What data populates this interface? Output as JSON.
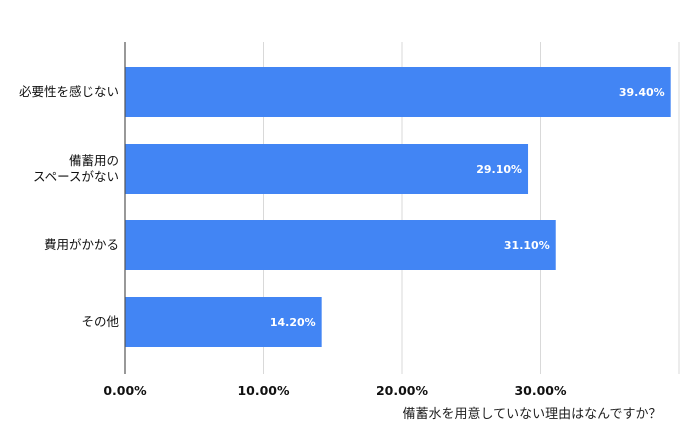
{
  "chart_data": {
    "type": "bar",
    "orientation": "horizontal",
    "categories": [
      [
        "必要性を感じない"
      ],
      [
        "備蓄用の",
        "スペースがない"
      ],
      [
        "費用がかかる"
      ],
      [
        "その他"
      ]
    ],
    "values": [
      39.4,
      29.1,
      31.1,
      14.2
    ],
    "data_labels": [
      "39.40%",
      "29.10%",
      "31.10%",
      "14.20%"
    ],
    "x_ticks": [
      0,
      10,
      20,
      30
    ],
    "x_tick_labels": [
      "0.00%",
      "10.00%",
      "20.00%",
      "30.00%"
    ],
    "xlim": [
      0,
      40
    ],
    "xlabel": "備蓄水を用意していない理由はなんですか？",
    "ylabel": "",
    "title": "",
    "grid": true,
    "legend": "none",
    "colors": {
      "bar": "#4285f4",
      "grid": "#d9d9d9",
      "axis": "#555555"
    }
  }
}
